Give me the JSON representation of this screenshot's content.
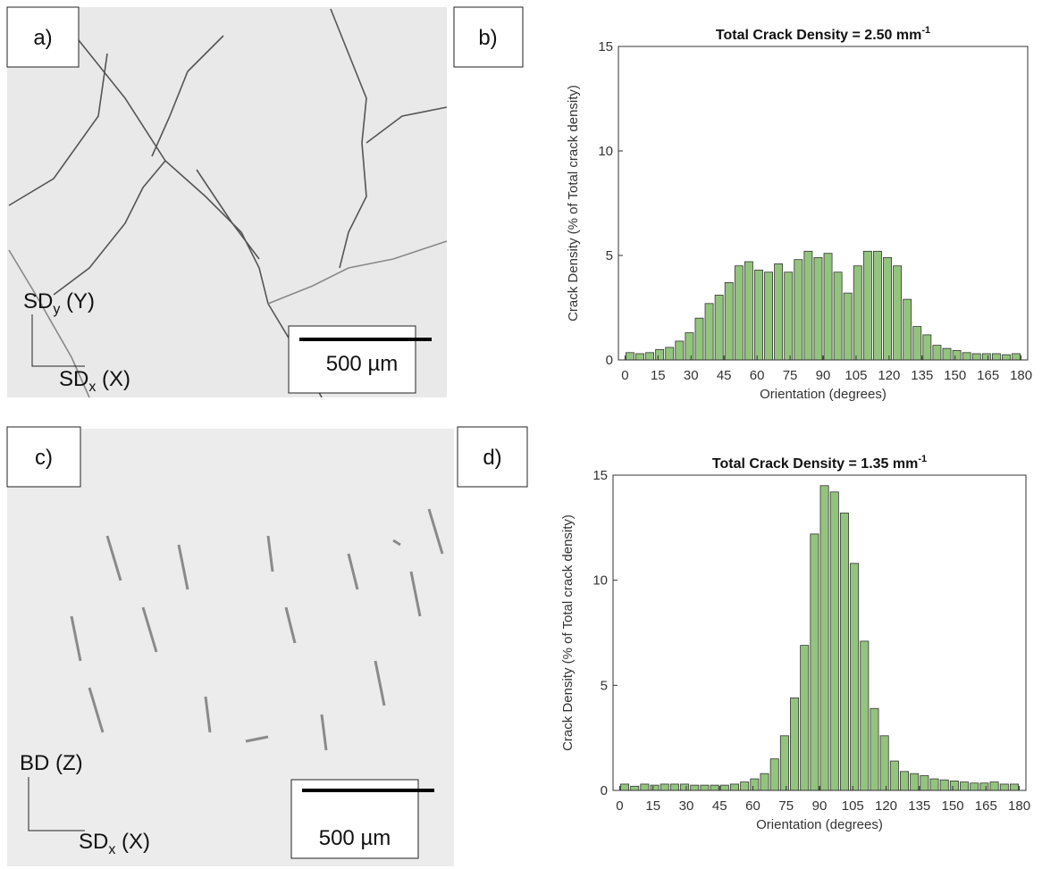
{
  "panels": [
    {
      "label": "a)",
      "axis_y": [
        "SD",
        "y",
        " (Y)"
      ],
      "axis_x": [
        "SD",
        "x",
        " (X)"
      ],
      "scale_bar": "500 µm"
    },
    {
      "label": "b)"
    },
    {
      "label": "c)",
      "axis_y": [
        "BD (Z)"
      ],
      "axis_x": [
        "SD",
        "x",
        " (X)"
      ],
      "scale_bar": "500 µm"
    },
    {
      "label": "d)"
    }
  ],
  "chart_data": [
    {
      "type": "histogram",
      "title": "Total Crack Density = 2.50 mm",
      "title_superscript": "-1",
      "xlabel": "Orientation (degrees)",
      "ylabel": "Crack Density (% of Total crack density)",
      "bins": [
        0,
        4.5,
        9,
        13.5,
        18,
        22.5,
        27,
        31.5,
        36,
        40.5,
        45,
        49.5,
        54,
        58.5,
        63,
        67.5,
        72,
        76.5,
        81,
        85.5,
        90,
        94.5,
        99,
        103.5,
        108,
        112.5,
        117,
        121.5,
        126,
        130.5,
        135,
        139.5,
        144,
        148.5,
        153,
        157.5,
        162,
        166.5,
        171,
        175.5,
        180
      ],
      "values": [
        0.35,
        0.3,
        0.35,
        0.5,
        0.6,
        0.9,
        1.3,
        2.0,
        2.7,
        3.1,
        3.7,
        4.5,
        4.7,
        4.3,
        4.2,
        4.6,
        4.2,
        4.8,
        5.2,
        4.9,
        5.1,
        4.2,
        3.2,
        4.5,
        5.2,
        5.2,
        4.9,
        4.5,
        2.9,
        1.6,
        1.2,
        0.7,
        0.55,
        0.45,
        0.35,
        0.3,
        0.3,
        0.3,
        0.25,
        0.3
      ],
      "color": "#93c47d",
      "xlim": [
        -3,
        183
      ],
      "ylim": [
        0,
        15
      ],
      "xticks": [
        0,
        15,
        30,
        45,
        60,
        75,
        90,
        105,
        120,
        135,
        150,
        165,
        180
      ],
      "yticks": [
        0,
        5,
        10,
        15
      ]
    },
    {
      "type": "histogram",
      "title": "Total Crack Density = 1.35 mm",
      "title_superscript": "-1",
      "xlabel": "Orientation (degrees)",
      "ylabel": "Crack Density (% of Total crack density)",
      "bins": [
        0,
        4.5,
        9,
        13.5,
        18,
        22.5,
        27,
        31.5,
        36,
        40.5,
        45,
        49.5,
        54,
        58.5,
        63,
        67.5,
        72,
        76.5,
        81,
        85.5,
        90,
        94.5,
        99,
        103.5,
        108,
        112.5,
        117,
        121.5,
        126,
        130.5,
        135,
        139.5,
        144,
        148.5,
        153,
        157.5,
        162,
        166.5,
        171,
        175.5,
        180
      ],
      "values": [
        0.3,
        0.2,
        0.3,
        0.25,
        0.3,
        0.3,
        0.3,
        0.25,
        0.25,
        0.25,
        0.25,
        0.3,
        0.4,
        0.55,
        0.8,
        1.5,
        2.6,
        4.4,
        6.9,
        12.2,
        14.5,
        14.2,
        13.2,
        10.8,
        7.1,
        3.9,
        2.6,
        1.4,
        0.9,
        0.8,
        0.7,
        0.55,
        0.5,
        0.45,
        0.4,
        0.35,
        0.35,
        0.4,
        0.3,
        0.3
      ],
      "color": "#93c47d",
      "xlim": [
        -3,
        183
      ],
      "ylim": [
        0,
        15
      ],
      "xticks": [
        0,
        15,
        30,
        45,
        60,
        75,
        90,
        105,
        120,
        135,
        150,
        165,
        180
      ],
      "yticks": [
        0,
        5,
        10,
        15
      ]
    }
  ]
}
